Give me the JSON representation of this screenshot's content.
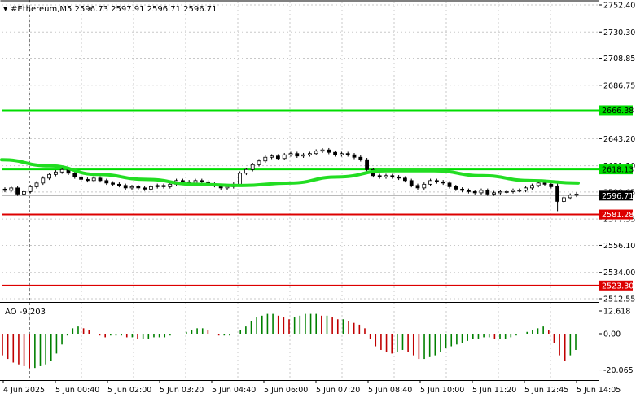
{
  "header": {
    "arrow": "▼",
    "title": "#Ethereum,M5  2596.73 2597.91 2596.71 2596.71"
  },
  "ao": {
    "title": "AO -9.203"
  },
  "price_axis": {
    "ticks": [
      "2752.40",
      "2730.30",
      "2708.85",
      "2686.75",
      "2643.20",
      "2621.10",
      "2599.65",
      "2577.55",
      "2556.10",
      "2534.00",
      "2512.55"
    ],
    "labels": [
      {
        "text": "2666.38",
        "kind": "green",
        "price": 2666.38
      },
      {
        "text": "2618.13",
        "kind": "green",
        "price": 2618.13
      },
      {
        "text": "2596.71",
        "kind": "current",
        "price": 2596.71
      },
      {
        "text": "2581.28",
        "kind": "red",
        "price": 2581.28
      },
      {
        "text": "2523.30",
        "kind": "red",
        "price": 2523.3
      }
    ]
  },
  "ao_axis": {
    "ticks": [
      "12.618",
      "0.00",
      "-20.065"
    ]
  },
  "time_axis": {
    "labels": [
      "4 Jun 2025",
      "5 Jun 00:40",
      "5 Jun 02:00",
      "5 Jun 03:20",
      "5 Jun 04:40",
      "5 Jun 06:00",
      "5 Jun 07:20",
      "5 Jun 08:40",
      "5 Jun 10:00",
      "5 Jun 11:20",
      "5 Jun 12:45",
      "5 Jun 14:05"
    ]
  },
  "colors": {
    "level_green": "#00dd00",
    "level_red": "#dd0000",
    "ma": "#22dd22",
    "ao_up": "#008000",
    "ao_down": "#c00000",
    "candle": "#000000"
  },
  "chart_data": {
    "type": "candlestick",
    "symbol": "#Ethereum",
    "timeframe": "M5",
    "ohlc_header": [
      2596.73,
      2597.91,
      2596.71,
      2596.71
    ],
    "y_range": [
      2512.55,
      2752.4
    ],
    "horizontal_levels": [
      2666.38,
      2618.13,
      2581.28,
      2523.3
    ],
    "close_series": [
      2601,
      2603,
      2598,
      2600,
      2604,
      2607,
      2611,
      2614,
      2616,
      2618,
      2615,
      2612,
      2610,
      2609,
      2611,
      2609,
      2607,
      2606,
      2605,
      2603,
      2604,
      2603,
      2602,
      2604,
      2605,
      2604,
      2606,
      2609,
      2608,
      2607,
      2609,
      2608,
      2606,
      2605,
      2603,
      2604,
      2606,
      2615,
      2618,
      2622,
      2625,
      2628,
      2629,
      2627,
      2630,
      2631,
      2629,
      2630,
      2631,
      2633,
      2634,
      2632,
      2630,
      2631,
      2630,
      2628,
      2626,
      2618,
      2613,
      2612,
      2613,
      2612,
      2611,
      2609,
      2605,
      2603,
      2606,
      2609,
      2608,
      2607,
      2604,
      2602,
      2601,
      2600,
      2599,
      2601,
      2598,
      2599,
      2600,
      2600,
      2601,
      2601,
      2603,
      2605,
      2607,
      2606,
      2604,
      2592,
      2595,
      2597,
      2598
    ],
    "moving_average": [
      2626,
      2621,
      2614,
      2610,
      2606,
      2605,
      2607,
      2612,
      2617,
      2617,
      2613,
      2609,
      2607
    ],
    "awesome_oscillator": {
      "range": [
        -20.065,
        12.618
      ],
      "values": [
        -12,
        -14,
        -16,
        -17,
        -18,
        -19,
        -19,
        -18,
        -17,
        -15,
        -11,
        -6,
        -1,
        3,
        4,
        3,
        2,
        0,
        -1,
        -2,
        -1,
        -1,
        -1,
        -2,
        -2,
        -3,
        -3,
        -3,
        -2,
        -2,
        -2,
        -1,
        0,
        0,
        1,
        2,
        3,
        3,
        2,
        0,
        -1,
        -1,
        -1,
        0,
        2,
        4,
        7,
        9,
        10,
        11,
        11,
        10,
        9,
        8,
        9,
        10,
        11,
        11,
        11,
        10,
        10,
        9,
        8,
        8,
        7,
        6,
        5,
        3,
        -3,
        -7,
        -9,
        -10,
        -11,
        -10,
        -9,
        -10,
        -12,
        -14,
        -14,
        -13,
        -12,
        -10,
        -8,
        -7,
        -6,
        -5,
        -4,
        -3,
        -3,
        -2,
        -2,
        -3,
        -3,
        -3,
        -2,
        -1,
        0,
        1,
        2,
        3,
        4,
        2,
        -5,
        -12,
        -15,
        -12,
        -9
      ]
    }
  }
}
